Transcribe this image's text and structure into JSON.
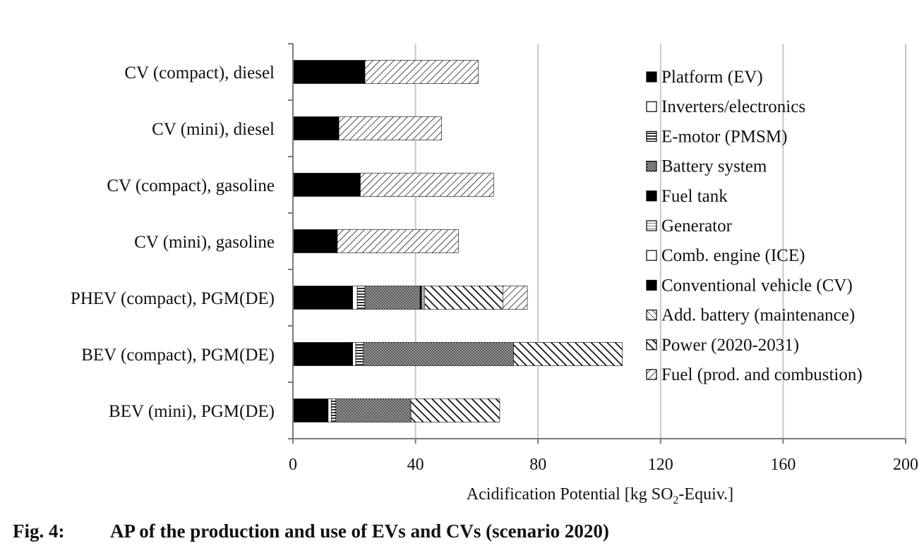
{
  "chart_data": {
    "type": "bar",
    "orientation": "horizontal",
    "stacked": true,
    "categories": [
      "CV (compact), diesel",
      "CV (mini), diesel",
      "CV (compact), gasoline",
      "CV (mini), gasoline",
      "PHEV (compact), PGM(DE)",
      "BEV (compact), PGM(DE)",
      "BEV (mini), PGM(DE)"
    ],
    "series": [
      {
        "name": "Platform (EV)",
        "key": "platform",
        "values": [
          0,
          0,
          0,
          0,
          19.5,
          19.5,
          11.5
        ]
      },
      {
        "name": "Inverters/electronics",
        "key": "inverters",
        "values": [
          0,
          0,
          0,
          0,
          1.5,
          1.0,
          1.0
        ]
      },
      {
        "name": "E-motor (PMSM)",
        "key": "emotor",
        "values": [
          0,
          0,
          0,
          0,
          2.5,
          2.5,
          1.5
        ]
      },
      {
        "name": "Battery system",
        "key": "battery",
        "values": [
          0,
          0,
          0,
          0,
          18.0,
          49.0,
          24.5
        ]
      },
      {
        "name": "Fuel tank",
        "key": "fueltank",
        "values": [
          0,
          0,
          0,
          0,
          0.5,
          0,
          0
        ]
      },
      {
        "name": "Generator",
        "key": "generator",
        "values": [
          0,
          0,
          0,
          0,
          0.5,
          0,
          0
        ]
      },
      {
        "name": "Comb. engine (ICE)",
        "key": "ice",
        "values": [
          0,
          0,
          0,
          0,
          0.5,
          0,
          0
        ]
      },
      {
        "name": "Conventional vehicle (CV)",
        "key": "cv",
        "values": [
          23.5,
          15,
          22,
          14.5,
          0,
          0,
          0
        ]
      },
      {
        "name": "Add. battery (maintenance)",
        "key": "addbattery",
        "values": [
          0,
          0,
          0,
          0,
          0,
          0,
          0
        ]
      },
      {
        "name": "Power (2020-2031)",
        "key": "power",
        "values": [
          0,
          0,
          0,
          0,
          25.5,
          35.5,
          29
        ]
      },
      {
        "name": "Fuel (prod. and combustion)",
        "key": "fuel",
        "values": [
          37,
          33.5,
          43.5,
          39.5,
          8,
          0,
          0
        ]
      }
    ],
    "xlim": [
      0,
      200
    ],
    "xticks": [
      0,
      40,
      80,
      120,
      160,
      200
    ],
    "xlabel_main": "Acidification Potential [kg SO",
    "xlabel_sub": "2",
    "xlabel_tail": "-Equiv.]",
    "grid": "vertical",
    "legend": "top-right"
  },
  "caption": {
    "number": "Fig. 4:",
    "text": "AP of the production and use of EVs and CVs (scenario 2020)"
  },
  "colors": {
    "black": "#000000",
    "grid": "#c8c8c8",
    "axis": "#7a7a7a",
    "battery_fill": "#888888"
  }
}
